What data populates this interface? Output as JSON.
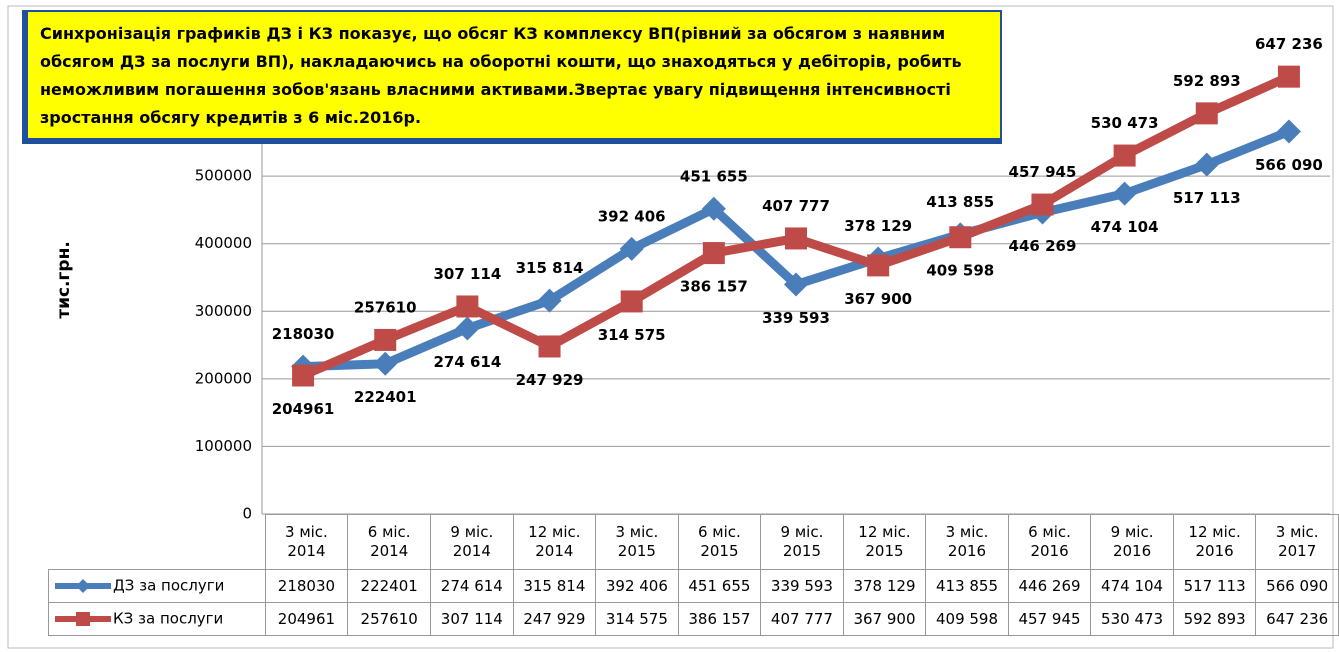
{
  "chart_data": {
    "type": "line",
    "title": "Синхронізація графиків ДЗ і КЗ показує, що обсяг КЗ комплексу ВП(рівний за обсягом з наявним обсягом ДЗ за послуги ВП), накладаючись на оборотні кошти, що знаходяться у дебіторів, робить неможливим погашення зобов'язань власними активами.Звертає увагу підвищення інтенсивності зростання обсягу кредитів з 6 міс.2016р.",
    "y_label": "тис.грн.",
    "categories": [
      "3 міс. 2014",
      "6 міс. 2014",
      "9 міс. 2014",
      "12 міс. 2014",
      "3 міс. 2015",
      "6 міс. 2015",
      "9 міс. 2015",
      "12 міс. 2015",
      "3 міс. 2016",
      "6 міс. 2016",
      "9 міс. 2016",
      "12 міс. 2016",
      "3 міс. 2017"
    ],
    "series": [
      {
        "name": "ДЗ за послуги",
        "color": "#4a7ebb",
        "marker": "diamond",
        "values": [
          218030,
          222401,
          274614,
          315814,
          392406,
          451655,
          339593,
          378129,
          413855,
          446269,
          474104,
          517113,
          566090
        ],
        "value_labels": [
          "218030",
          "222401",
          "274 614",
          "315 814",
          "392 406",
          "451 655",
          "339 593",
          "378 129",
          "413 855",
          "446 269",
          "474 104",
          "517 113",
          "566 090"
        ]
      },
      {
        "name": "КЗ за послуги",
        "color": "#be4b48",
        "marker": "square",
        "values": [
          204961,
          257610,
          307114,
          247929,
          314575,
          386157,
          407777,
          367900,
          409598,
          457945,
          530473,
          592893,
          647236
        ],
        "value_labels": [
          "204961",
          "257610",
          "307 114",
          "247 929",
          "314 575",
          "386 157",
          "407 777",
          "367 900",
          "409 598",
          "457 945",
          "530 473",
          "592 893",
          "647 236"
        ]
      }
    ],
    "ylim": [
      0,
      700000
    ],
    "yticks": [
      0,
      100000,
      200000,
      300000,
      400000,
      500000
    ],
    "grid": true
  }
}
